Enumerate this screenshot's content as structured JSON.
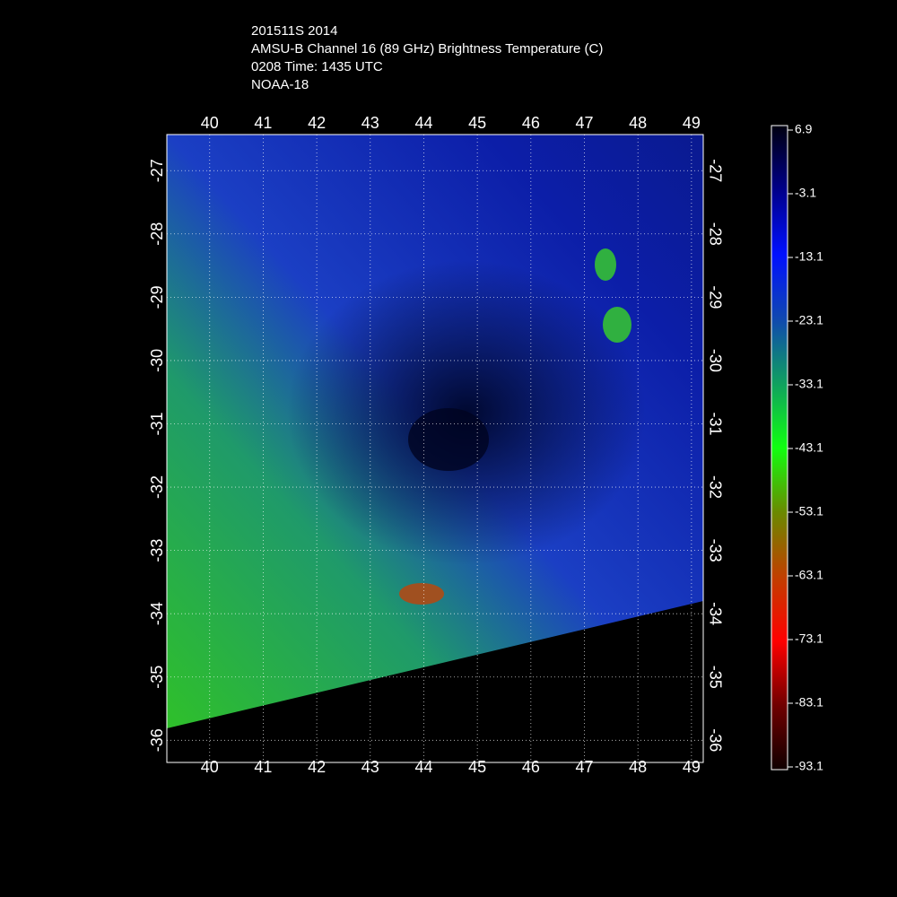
{
  "title_lines": [
    "201511S 2014",
    "AMSU-B Channel 16 (89 GHz) Brightness Temperature (C)",
    "0208 Time: 1435 UTC",
    "NOAA-18"
  ],
  "map": {
    "xlim": [
      39.2,
      49.22
    ],
    "ylim": [
      -36.35,
      -26.43
    ],
    "xticks": [
      40,
      41,
      42,
      43,
      44,
      45,
      46,
      47,
      48,
      49
    ],
    "yticks": [
      -27,
      -28,
      -29,
      -30,
      -31,
      -32,
      -33,
      -34,
      -35,
      -36
    ]
  },
  "colorbar": {
    "lim": [
      -93.1,
      6.9
    ],
    "ticks": [
      6.9,
      -3.1,
      -13.1,
      -23.1,
      -33.1,
      -43.1,
      -53.1,
      -63.1,
      -73.1,
      -83.1,
      -93.1
    ]
  }
}
